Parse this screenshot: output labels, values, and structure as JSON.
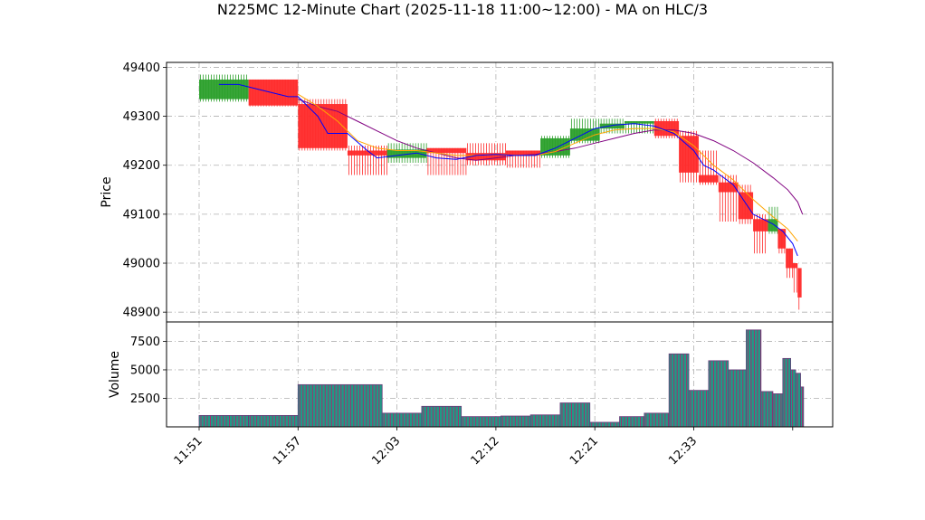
{
  "chart_data": {
    "type": "candlestick",
    "title": "N225MC 12-Minute Chart (2025-11-18 11:00~12:00) - MA on HLC/3",
    "price_panel": {
      "ylabel": "Price",
      "ylim": [
        48880,
        49410
      ],
      "yticks": [
        48900,
        49000,
        49100,
        49200,
        49300,
        49400
      ],
      "grid": true
    },
    "volume_panel": {
      "ylabel": "Volume",
      "ylim": [
        0,
        9200
      ],
      "yticks": [
        2500,
        5000,
        7500
      ],
      "ytick_labels": [
        "2500",
        "5000",
        "7500"
      ],
      "grid": true
    },
    "x_ticks": [
      {
        "slot": 0,
        "label": "11:51"
      },
      {
        "slot": 10,
        "label": "11:57"
      },
      {
        "slot": 20,
        "label": "12:03"
      },
      {
        "slot": 30,
        "label": "12:12"
      },
      {
        "slot": 40,
        "label": "12:21"
      },
      {
        "slot": 50,
        "label": "12:33"
      },
      {
        "slot": 60,
        "label": ""
      }
    ],
    "colors": {
      "up": "#2ca02c",
      "down": "#ff2a2a",
      "ma_fast": "#0000ff",
      "ma_mid": "#ffa500",
      "ma_slow": "#800080",
      "volume_bar": "#1f9a86",
      "volume_edge": "#a0306e"
    },
    "candles": [
      {
        "start": 0,
        "end": 5,
        "open": 49335,
        "high": 49385,
        "low": 49330,
        "close": 49375
      },
      {
        "start": 5,
        "end": 10,
        "open": 49375,
        "high": 49375,
        "low": 49320,
        "close": 49322
      },
      {
        "start": 10,
        "end": 15,
        "open": 49325,
        "high": 49335,
        "low": 49230,
        "close": 49235
      },
      {
        "start": 15,
        "end": 19,
        "open": 49230,
        "high": 49240,
        "low": 49180,
        "close": 49220
      },
      {
        "start": 19,
        "end": 23,
        "open": 49215,
        "high": 49245,
        "low": 49205,
        "close": 49232
      },
      {
        "start": 23,
        "end": 27,
        "open": 49235,
        "high": 49235,
        "low": 49180,
        "close": 49225
      },
      {
        "start": 27,
        "end": 31,
        "open": 49225,
        "high": 49245,
        "low": 49200,
        "close": 49210
      },
      {
        "start": 31,
        "end": 34.5,
        "open": 49230,
        "high": 49230,
        "low": 49195,
        "close": 49220
      },
      {
        "start": 34.5,
        "end": 37.5,
        "open": 49220,
        "high": 49260,
        "low": 49215,
        "close": 49255
      },
      {
        "start": 37.5,
        "end": 40.5,
        "open": 49250,
        "high": 49295,
        "low": 49245,
        "close": 49275
      },
      {
        "start": 40.5,
        "end": 43,
        "open": 49275,
        "high": 49295,
        "low": 49265,
        "close": 49285
      },
      {
        "start": 43,
        "end": 46,
        "open": 49285,
        "high": 49290,
        "low": 49265,
        "close": 49290
      },
      {
        "start": 46,
        "end": 48.5,
        "open": 49290,
        "high": 49295,
        "low": 49255,
        "close": 49260
      },
      {
        "start": 48.5,
        "end": 50.5,
        "open": 49260,
        "high": 49270,
        "low": 49165,
        "close": 49185
      },
      {
        "start": 50.5,
        "end": 52.5,
        "open": 49180,
        "high": 49230,
        "low": 49160,
        "close": 49165
      },
      {
        "start": 52.5,
        "end": 54.5,
        "open": 49165,
        "high": 49180,
        "low": 49085,
        "close": 49145
      },
      {
        "start": 54.5,
        "end": 56,
        "open": 49145,
        "high": 49160,
        "low": 49080,
        "close": 49090
      },
      {
        "start": 56,
        "end": 57.5,
        "open": 49090,
        "high": 49100,
        "low": 49020,
        "close": 49065
      },
      {
        "start": 57.5,
        "end": 58.5,
        "open": 49065,
        "high": 49115,
        "low": 49060,
        "close": 49090
      },
      {
        "start": 58.5,
        "end": 59.3,
        "open": 49070,
        "high": 49070,
        "low": 49020,
        "close": 49030
      },
      {
        "start": 59.3,
        "end": 60.0,
        "open": 49030,
        "high": 49030,
        "low": 48970,
        "close": 48990
      },
      {
        "start": 60.0,
        "end": 60.5,
        "open": 49000,
        "high": 49000,
        "low": 48940,
        "close": 48990
      },
      {
        "start": 60.5,
        "end": 60.9,
        "open": 48990,
        "high": 48990,
        "low": 48905,
        "close": 48930
      }
    ],
    "volumes": [
      {
        "start": 0,
        "end": 5,
        "value": 1000
      },
      {
        "start": 5,
        "end": 10,
        "value": 1000
      },
      {
        "start": 10,
        "end": 18.5,
        "value": 3700
      },
      {
        "start": 18.5,
        "end": 22.5,
        "value": 1200
      },
      {
        "start": 22.5,
        "end": 26.5,
        "value": 1800
      },
      {
        "start": 26.5,
        "end": 30.5,
        "value": 900
      },
      {
        "start": 30.5,
        "end": 33.5,
        "value": 950
      },
      {
        "start": 33.5,
        "end": 36.5,
        "value": 1050
      },
      {
        "start": 36.5,
        "end": 39.5,
        "value": 2100
      },
      {
        "start": 39.5,
        "end": 42.5,
        "value": 400
      },
      {
        "start": 42.5,
        "end": 45,
        "value": 900
      },
      {
        "start": 45,
        "end": 47.5,
        "value": 1200
      },
      {
        "start": 47.5,
        "end": 49.5,
        "value": 6400
      },
      {
        "start": 49.5,
        "end": 51.5,
        "value": 3200
      },
      {
        "start": 51.5,
        "end": 53.5,
        "value": 5800
      },
      {
        "start": 53.5,
        "end": 55.3,
        "value": 5000
      },
      {
        "start": 55.3,
        "end": 56.8,
        "value": 8500
      },
      {
        "start": 56.8,
        "end": 58.0,
        "value": 3100
      },
      {
        "start": 58.0,
        "end": 59.0,
        "value": 2900
      },
      {
        "start": 59.0,
        "end": 59.8,
        "value": 6000
      },
      {
        "start": 59.8,
        "end": 60.3,
        "value": 5000
      },
      {
        "start": 60.3,
        "end": 60.8,
        "value": 4700
      },
      {
        "start": 60.8,
        "end": 61.1,
        "value": 3500
      }
    ],
    "ma_fast": [
      [
        2,
        49365
      ],
      [
        4,
        49365
      ],
      [
        7,
        49350
      ],
      [
        9,
        49340
      ],
      [
        10,
        49340
      ],
      [
        12,
        49300
      ],
      [
        13,
        49265
      ],
      [
        15,
        49265
      ],
      [
        17,
        49230
      ],
      [
        18,
        49215
      ],
      [
        20,
        49220
      ],
      [
        22,
        49225
      ],
      [
        24,
        49215
      ],
      [
        26,
        49212
      ],
      [
        28,
        49220
      ],
      [
        30,
        49222
      ],
      [
        32,
        49220
      ],
      [
        34,
        49220
      ],
      [
        36,
        49235
      ],
      [
        38,
        49255
      ],
      [
        40,
        49275
      ],
      [
        42,
        49282
      ],
      [
        44,
        49285
      ],
      [
        46,
        49280
      ],
      [
        48,
        49265
      ],
      [
        50,
        49230
      ],
      [
        51,
        49200
      ],
      [
        52,
        49190
      ],
      [
        54,
        49160
      ],
      [
        55,
        49130
      ],
      [
        56,
        49100
      ],
      [
        58,
        49080
      ],
      [
        59,
        49065
      ],
      [
        60,
        49040
      ],
      [
        60.5,
        49015
      ]
    ],
    "ma_mid": [
      [
        10,
        49345
      ],
      [
        12,
        49320
      ],
      [
        14,
        49290
      ],
      [
        16,
        49250
      ],
      [
        18,
        49235
      ],
      [
        20,
        49230
      ],
      [
        22,
        49230
      ],
      [
        24,
        49225
      ],
      [
        26,
        49220
      ],
      [
        28,
        49220
      ],
      [
        30,
        49222
      ],
      [
        32,
        49220
      ],
      [
        34,
        49220
      ],
      [
        36,
        49228
      ],
      [
        38,
        49245
      ],
      [
        40,
        49262
      ],
      [
        42,
        49272
      ],
      [
        44,
        49275
      ],
      [
        46,
        49275
      ],
      [
        48,
        49268
      ],
      [
        50,
        49240
      ],
      [
        52,
        49200
      ],
      [
        54,
        49170
      ],
      [
        56,
        49130
      ],
      [
        58,
        49095
      ],
      [
        59.5,
        49070
      ],
      [
        60.5,
        49045
      ]
    ],
    "ma_slow": [
      [
        10,
        49335
      ],
      [
        12,
        49320
      ],
      [
        14,
        49310
      ],
      [
        16,
        49290
      ],
      [
        18,
        49270
      ],
      [
        20,
        49250
      ],
      [
        22,
        49235
      ],
      [
        24,
        49225
      ],
      [
        26,
        49215
      ],
      [
        28,
        49210
      ],
      [
        30,
        49215
      ],
      [
        32,
        49220
      ],
      [
        34,
        49222
      ],
      [
        36,
        49228
      ],
      [
        38,
        49235
      ],
      [
        40,
        49245
      ],
      [
        42,
        49255
      ],
      [
        44,
        49265
      ],
      [
        46,
        49272
      ],
      [
        48,
        49272
      ],
      [
        50,
        49265
      ],
      [
        52,
        49250
      ],
      [
        54,
        49230
      ],
      [
        56,
        49205
      ],
      [
        58,
        49175
      ],
      [
        59.5,
        49150
      ],
      [
        60.5,
        49125
      ],
      [
        61,
        49100
      ]
    ]
  }
}
